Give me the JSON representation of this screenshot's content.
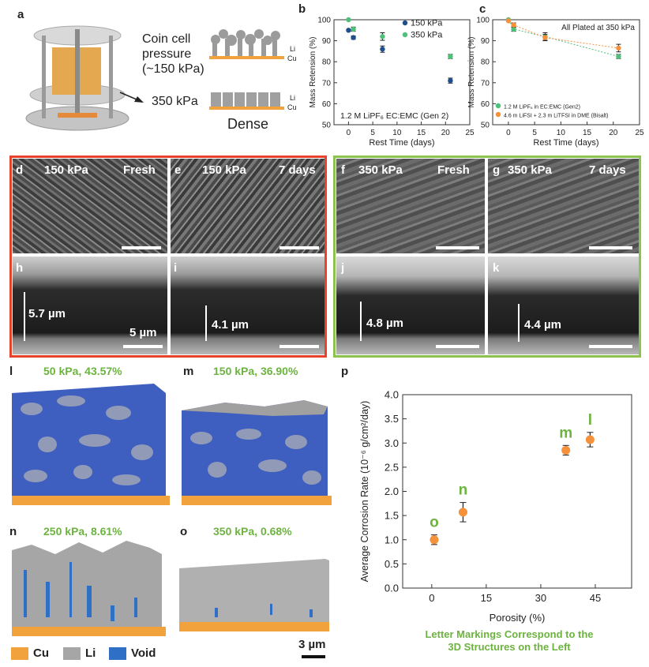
{
  "panels": {
    "a": "a",
    "b": "b",
    "c": "c",
    "d": "d",
    "e": "e",
    "f": "f",
    "g": "g",
    "h": "h",
    "i": "i",
    "j": "j",
    "k": "k",
    "l": "l",
    "m": "m",
    "n": "n",
    "o": "o",
    "p": "p"
  },
  "panel_a": {
    "coin_cell_text": [
      "Coin cell",
      "pressure",
      "(~150 kPa)"
    ],
    "pressure_350": "350 kPa",
    "dense_label": "Dense",
    "li": "Li",
    "cu": "Cu"
  },
  "sem": {
    "d": {
      "pressure": "150 kPa",
      "time": "Fresh"
    },
    "e": {
      "pressure": "150 kPa",
      "time": "7 days"
    },
    "f": {
      "pressure": "350 kPa",
      "time": "Fresh"
    },
    "g": {
      "pressure": "350 kPa",
      "time": "7 days"
    },
    "h": {
      "thickness": "5.7 µm",
      "scale": "5 µm"
    },
    "i": {
      "thickness": "4.1 µm"
    },
    "j": {
      "thickness": "4.8 µm"
    },
    "k": {
      "thickness": "4.4 µm"
    }
  },
  "structures": {
    "l": "50 kPa, 43.57%",
    "m": "150 kPa, 36.90%",
    "n": "250 kPa, 8.61%",
    "o": "350 kPa, 0.68%"
  },
  "legend_3d": {
    "cu": "Cu",
    "li": "Li",
    "void": "Void",
    "scale": "3 µm"
  },
  "colors": {
    "cu": "#f2a23c",
    "li": "#a6a6a6",
    "void": "#2f6fc6",
    "green": "#6cb33f",
    "orange": "#f5913b",
    "red_border": "#e8412c",
    "green_border": "#8cc34f"
  },
  "chart_data": [
    {
      "id": "b",
      "type": "scatter",
      "title": "",
      "annotation": "1.2 M LiPF₆ EC:EMC (Gen 2)",
      "xlabel": "Rest Time (days)",
      "ylabel": "Mass Retension (%)",
      "xlim": [
        -3,
        25
      ],
      "ylim": [
        50,
        100
      ],
      "xticks": [
        0,
        5,
        10,
        15,
        20,
        25
      ],
      "yticks": [
        50,
        60,
        70,
        80,
        90,
        100
      ],
      "legend_position": "top-right",
      "series": [
        {
          "name": "150 kPa",
          "color": "#1f4e8c",
          "x": [
            0,
            1,
            7,
            21
          ],
          "y": [
            95,
            91.5,
            86,
            71
          ],
          "err": [
            0,
            0.8,
            1.5,
            1.2
          ]
        },
        {
          "name": "350 kPa",
          "color": "#4fc07c",
          "x": [
            0,
            1,
            7,
            21
          ],
          "y": [
            100,
            95.5,
            92,
            82.5
          ],
          "err": [
            0,
            1,
            1.8,
            1
          ]
        }
      ]
    },
    {
      "id": "c",
      "type": "line",
      "title": "All Plated at 350 kPa",
      "xlabel": "Rest Time (days)",
      "ylabel": "Mass Retension (%)",
      "xlim": [
        -3,
        25
      ],
      "ylim": [
        50,
        100
      ],
      "xticks": [
        0,
        5,
        10,
        15,
        20,
        25
      ],
      "yticks": [
        50,
        60,
        70,
        80,
        90,
        100
      ],
      "legend_position": "bottom-left",
      "series": [
        {
          "name": "1.2 M LiPF₆ in EC:EMC (Gen2)",
          "color": "#4fc07c",
          "x": [
            0,
            1,
            7,
            21
          ],
          "y": [
            100,
            95.5,
            92,
            82.5
          ],
          "err": [
            0,
            1,
            1.8,
            1
          ]
        },
        {
          "name": "4.6 m LiFSI + 2.3 m LiTFSI in DME (Bisalt)",
          "color": "#f5913b",
          "x": [
            0,
            1,
            7,
            21
          ],
          "y": [
            99.5,
            97.5,
            91.5,
            86.5
          ],
          "err": [
            0,
            1,
            1.5,
            1.8
          ]
        }
      ]
    },
    {
      "id": "p",
      "type": "scatter",
      "title": "",
      "xlabel": "Porosity (%)",
      "ylabel": "Average Corrosion Rate (10⁻⁶ g/cm²/day)",
      "xlim": [
        -8,
        55
      ],
      "ylim": [
        0,
        4
      ],
      "xticks": [
        0,
        15,
        30,
        45
      ],
      "yticks": [
        0.0,
        0.5,
        1.0,
        1.5,
        2.0,
        2.5,
        3.0,
        3.5,
        4.0
      ],
      "points": [
        {
          "label": "o",
          "x": 0.68,
          "y": 1.0,
          "err": 0.1
        },
        {
          "label": "n",
          "x": 8.61,
          "y": 1.57,
          "err": 0.2
        },
        {
          "label": "m",
          "x": 36.9,
          "y": 2.85,
          "err": 0.1
        },
        {
          "label": "l",
          "x": 43.57,
          "y": 3.07,
          "err": 0.15
        }
      ],
      "caption": [
        "Letter Markings Correspond to the",
        "3D Structures on the Left"
      ]
    }
  ]
}
